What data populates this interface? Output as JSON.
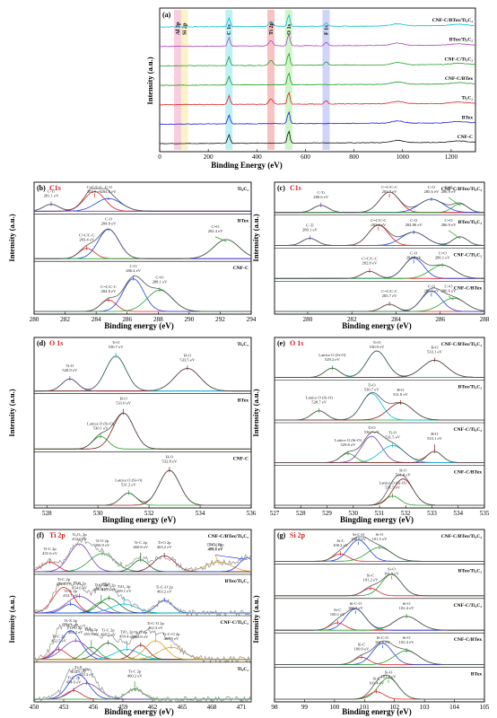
{
  "figure": {
    "axis": {
      "ylabel": "Intensity (a.u.)",
      "xlabel": "Binding energy (eV)",
      "xlabel_a": "Binding Energy (eV)",
      "xlabel_d": "Bingding energy (eV)"
    }
  },
  "chart_data": [
    {
      "panel": "(a)",
      "type": "line",
      "xlabel": "Binding Energy (eV)",
      "ylabel": "Intensity (a.u.)",
      "xlim": [
        0,
        1300
      ],
      "xticks": [
        0,
        200,
        400,
        600,
        800,
        1000,
        1200
      ],
      "bands": [
        {
          "label": "Al 2p",
          "x": 74,
          "color": "#f3a3c8"
        },
        {
          "label": "Si 2p",
          "x": 102,
          "color": "#f6e79a"
        },
        {
          "label": "C 1s",
          "x": 285,
          "color": "#88e6f0"
        },
        {
          "label": "Ti 2p",
          "x": 458,
          "color": "#f29090"
        },
        {
          "label": "O 1s",
          "x": 531,
          "color": "#a7ec9c"
        },
        {
          "label": "F 1s",
          "x": 685,
          "color": "#a9b0f2"
        }
      ],
      "series": [
        {
          "name": "CNF-C/BTex/Ti₃C₂",
          "color": "#00bcd4"
        },
        {
          "name": "BTex/Ti₃C₂",
          "color": "#b040c0"
        },
        {
          "name": "CNF-C/Ti₃C₂",
          "color": "#22a02a"
        },
        {
          "name": "CNF-C/BTex",
          "color": "#1a9a1a"
        },
        {
          "name": "Ti₃C₂",
          "color": "#e02020"
        },
        {
          "name": "BTex",
          "color": "#1a1ae0"
        },
        {
          "name": "CNF-C",
          "color": "#111111"
        }
      ]
    },
    {
      "panel": "(b)",
      "element": "C1s",
      "type": "line",
      "xlabel": "Binding energy (eV)",
      "ylabel": "Intensity (a.u.)",
      "xlim": [
        280,
        294
      ],
      "xticks": [
        280,
        282,
        284,
        286,
        288,
        290,
        292,
        294
      ],
      "subpanels": [
        {
          "sample": "Ti₃C₂",
          "peaks": [
            {
              "label": "C-Ti",
              "be": "281.1 eV",
              "x": 281.1,
              "color": "#7a3fb0"
            },
            {
              "label": "C=C/C-C",
              "be": "283.9 eV",
              "x": 283.9,
              "color": "#e02020"
            },
            {
              "label": "C-O",
              "be": "284.8 eV",
              "x": 284.8,
              "color": "#2040e0"
            }
          ]
        },
        {
          "sample": "BTex",
          "peaks": [
            {
              "label": "C=C/C-C",
              "be": "283.4 eV",
              "x": 283.4,
              "color": "#e02020"
            },
            {
              "label": "C-O",
              "be": "284.8 eV",
              "x": 284.8,
              "color": "#2040e0"
            },
            {
              "label": "C=O",
              "be": "292.4 eV",
              "x": 292.4,
              "color": "#22a02a"
            }
          ]
        },
        {
          "sample": "CNF-C",
          "peaks": [
            {
              "label": "C=C/C-C",
              "be": "284.8 eV",
              "x": 284.8,
              "color": "#e02020"
            },
            {
              "label": "C-O",
              "be": "286.4 eV",
              "x": 286.4,
              "color": "#2040e0"
            },
            {
              "label": "C=O",
              "be": "288.1 eV",
              "x": 288.1,
              "color": "#22a02a"
            }
          ]
        }
      ]
    },
    {
      "panel": "(c)",
      "element": "C1s",
      "type": "line",
      "xlabel": "Binding energy (eV)",
      "ylabel": "Intensity (a.u.)",
      "xlim": [
        278.5,
        288
      ],
      "xticks": [
        280,
        282,
        284,
        286,
        288
      ],
      "subpanels": [
        {
          "sample": "CNF-C/BTex/Ti₃C₂",
          "peaks": [
            {
              "label": "C-Ti",
              "be": "280.6 eV",
              "x": 280.6,
              "color": "#7a3fb0"
            },
            {
              "label": "C=C/C-C",
              "be": "283.7 eV",
              "x": 283.7,
              "color": "#e02020"
            },
            {
              "label": "C-O",
              "be": "285.6 eV",
              "x": 285.6,
              "color": "#2040e0"
            },
            {
              "label": "C=O",
              "be": "286.9 eV",
              "x": 286.9,
              "color": "#22a02a"
            }
          ]
        },
        {
          "sample": "BTex/Ti₃C₂",
          "peaks": [
            {
              "label": "C-Ti",
              "be": "280.1 eV",
              "x": 280.1,
              "color": "#7a3fb0"
            },
            {
              "label": "C=C/C-C",
              "be": "283.2 eV",
              "x": 283.2,
              "color": "#e02020"
            },
            {
              "label": "C-O",
              "be": "284.80 eV",
              "x": 284.8,
              "color": "#2040e0"
            },
            {
              "label": "C=O",
              "be": "286.9 eV",
              "x": 286.9,
              "color": "#22a02a"
            }
          ]
        },
        {
          "sample": "CNF-C/Ti₃C₂",
          "peaks": [
            {
              "label": "C=C/C-C",
              "be": "282.8 eV",
              "x": 282.8,
              "color": "#e02020"
            },
            {
              "label": "C-O",
              "be": "284.8 eV",
              "x": 284.8,
              "color": "#2040e0"
            },
            {
              "label": "C=O",
              "be": "286.1 eV",
              "x": 286.1,
              "color": "#22a02a"
            }
          ]
        },
        {
          "sample": "CNF-C/BTex",
          "peaks": [
            {
              "label": "C=C/C-C",
              "be": "283.7 eV",
              "x": 283.7,
              "color": "#e02020"
            },
            {
              "label": "C-O",
              "be": "285.6 eV",
              "x": 285.6,
              "color": "#2040e0"
            },
            {
              "label": "C=O",
              "be": "286.6 eV",
              "x": 286.6,
              "color": "#22a02a"
            }
          ]
        }
      ]
    },
    {
      "panel": "(d)",
      "element": "O 1s",
      "type": "line",
      "xlabel": "Bingding energy (eV)",
      "ylabel": "Intensity (a.u.)",
      "xlim": [
        527.5,
        536
      ],
      "xticks": [
        528,
        530,
        532,
        534,
        536
      ],
      "subpanels": [
        {
          "sample": "Ti₃C₂",
          "peaks": [
            {
              "label": "Ti-O",
              "be": "528.9 eV",
              "x": 528.9,
              "color": "#7a3fb0"
            },
            {
              "label": "Ti-O",
              "be": "530.7 eV",
              "x": 530.7,
              "color": "#00bcd4"
            },
            {
              "label": "H-O",
              "be": "533.5 eV",
              "x": 533.5,
              "color": "#8a1a1a"
            }
          ]
        },
        {
          "sample": "BTex",
          "peaks": [
            {
              "label": "Lattice O (Si-O)",
              "be": "530.1 eV",
              "x": 530.1,
              "color": "#22a02a"
            },
            {
              "label": "H-O",
              "be": "531.0 eV",
              "x": 531.0,
              "color": "#8a1a1a"
            }
          ]
        },
        {
          "sample": "CNF-C",
          "peaks": [
            {
              "label": "Lattice O (Si-O)",
              "be": "531.2 eV",
              "x": 531.2,
              "color": "#22a02a"
            },
            {
              "label": "H-O",
              "be": "532.8 eV",
              "x": 532.8,
              "color": "#8a1a1a"
            }
          ]
        }
      ]
    },
    {
      "panel": "(e)",
      "element": "O 1s",
      "type": "line",
      "xlabel": "Bingding energy (eV)",
      "ylabel": "Intensity (a.u.)",
      "xlim": [
        527,
        535
      ],
      "xticks": [
        527,
        528,
        529,
        530,
        531,
        532,
        533,
        534,
        535
      ],
      "subpanels": [
        {
          "sample": "CNF-C/BTex/Ti₃C₂",
          "peaks": [
            {
              "label": "Lattice O (Si-O)",
              "be": "529.2 eV",
              "x": 529.2,
              "color": "#22a02a"
            },
            {
              "label": "Ti-O",
              "be": "530.9 eV",
              "x": 530.9,
              "color": "#00bcd4"
            },
            {
              "label": "H-O",
              "be": "533.1 eV",
              "x": 533.1,
              "color": "#8a1a1a"
            }
          ]
        },
        {
          "sample": "BTex/Ti₃C₂",
          "peaks": [
            {
              "label": "Lattice O (Si-O)",
              "be": "528.7 eV",
              "x": 528.7,
              "color": "#22a02a"
            },
            {
              "label": "Ti-O",
              "be": "530.7 eV",
              "x": 530.7,
              "color": "#00bcd4"
            },
            {
              "label": "H-O",
              "be": "531.8 eV",
              "x": 531.8,
              "color": "#8a1a1a"
            }
          ]
        },
        {
          "sample": "CNF-C/Ti₃C₂",
          "peaks": [
            {
              "label": "Lattice O (Si-O)",
              "be": "529.8 eV",
              "x": 529.8,
              "color": "#22a02a"
            },
            {
              "label": "Ti-O",
              "be": "530.7 eV",
              "x": 530.7,
              "color": "#7a3fb0"
            },
            {
              "label": "Ti-O",
              "be": "531.5 eV",
              "x": 531.5,
              "color": "#00bcd4"
            },
            {
              "label": "H-O",
              "be": "533.1 eV",
              "x": 533.1,
              "color": "#8a1a1a"
            }
          ]
        },
        {
          "sample": "CNF-C/BTex",
          "peaks": [
            {
              "label": "Lattice O (Si-O)",
              "be": "531.5 eV",
              "x": 531.5,
              "color": "#22a02a"
            },
            {
              "label": "H-O",
              "be": "531.9 eV",
              "x": 531.9,
              "color": "#8a1a1a"
            }
          ]
        }
      ]
    },
    {
      "panel": "(f)",
      "element": "Ti 2p",
      "type": "line",
      "xlabel": "Binding energy (eV)",
      "ylabel": "Intensity (a.u.)",
      "xlim": [
        450,
        472
      ],
      "xticks": [
        450,
        453,
        456,
        459,
        462,
        465,
        468,
        471
      ],
      "subpanels": [
        {
          "sample": "CNF-C/BTex/Ti₃C₂",
          "peaks": [
            {
              "label": "Ti-C 2p",
              "be": "451.6 eV",
              "x": 451.6,
              "color": "#e02020"
            },
            {
              "label": "Ti₂O₃ 2p",
              "be": "454.6 eV",
              "x": 454.6,
              "color": "#7a3fb0"
            },
            {
              "label": "Ti-O 2p",
              "be": "456.9 eV",
              "x": 456.9,
              "color": "#22a02a"
            },
            {
              "label": "Ti-C 2p",
              "be": "460.8 eV",
              "x": 460.8,
              "color": "#1a6a1a"
            },
            {
              "label": "Ti-O 2p",
              "be": "463.2 eV",
              "x": 463.2,
              "color": "#8a1a1a"
            },
            {
              "label": "TiO₂ 2p",
              "be": "468.7 eV",
              "x": 468.7,
              "color": "#e0a020"
            },
            {
              "label": "Ti-C-O 2p",
              "be": "471.6 eV",
              "x": 471.6,
              "color": "#2040e0"
            }
          ]
        },
        {
          "sample": "BTex/Ti₃C₂",
          "peaks": [
            {
              "label": "Ti-X 2p",
              "be": "453.7 eV",
              "x": 453.7,
              "color": "#2040e0"
            },
            {
              "label": "Ti-C 2p",
              "be": "453.0 eV",
              "x": 453.0,
              "color": "#e02020"
            },
            {
              "label": "Ti-O 2p",
              "be": "454.6 eV",
              "x": 454.6,
              "color": "#7a3fb0"
            },
            {
              "label": "Ti-O 2p",
              "be": "456.8 eV",
              "x": 456.8,
              "color": "#22a02a"
            },
            {
              "label": "Ti-C 2p",
              "be": "457.6 eV",
              "x": 457.6,
              "color": "#1a6a1a"
            },
            {
              "label": "TiO₂ 2p",
              "be": "459.1 eV",
              "x": 459.1,
              "color": "#00bcd4"
            },
            {
              "label": "Ti-C-O 2p",
              "be": "463.2 eV",
              "x": 463.2,
              "color": "#2040e0"
            }
          ]
        },
        {
          "sample": "CNF-C/Ti₃C₂",
          "peaks": [
            {
              "label": "Ti-C 2p",
              "be": "452.5 eV",
              "x": 452.5,
              "color": "#e02020"
            },
            {
              "label": "Ti-X 2p",
              "be": "453.7 eV",
              "x": 453.7,
              "color": "#2040e0"
            },
            {
              "label": "Ti-O 2p",
              "be": "454.2 eV",
              "x": 454.2,
              "color": "#7a3fb0"
            },
            {
              "label": "Ti-O 2p",
              "be": "455.8 eV",
              "x": 455.8,
              "color": "#22a02a"
            },
            {
              "label": "Ti-C 2p",
              "be": "457.5 eV",
              "x": 457.5,
              "color": "#1a6a1a"
            },
            {
              "label": "TiO₂ 2p",
              "be": "459.4 eV",
              "x": 459.4,
              "color": "#00bcd4"
            },
            {
              "label": "Ti-O 2p",
              "be": "460.8 eV",
              "x": 460.8,
              "color": "#8a1a1a"
            },
            {
              "label": "Ti-C-O 2p",
              "be": "462.3 eV",
              "x": 462.3,
              "color": "#e0a020"
            },
            {
              "label": "Ti-C-O 2p",
              "be": "463.9 eV",
              "x": 463.9,
              "color": "#e0a020"
            }
          ]
        },
        {
          "sample": "Ti₃C₂",
          "peaks": [
            {
              "label": "Ti-C 2p",
              "be": "454.0 eV",
              "x": 454.0,
              "color": "#e02020"
            },
            {
              "label": "Ti-X",
              "be": "454.5 eV",
              "x": 454.5,
              "color": "#2040e0"
            },
            {
              "label": "Ti²⁺",
              "be": "455.3 eV",
              "x": 455.3,
              "color": "#7a3fb0"
            },
            {
              "label": "Ti-C 2p",
              "be": "460.2 eV",
              "x": 460.2,
              "color": "#22a02a"
            }
          ]
        }
      ]
    },
    {
      "panel": "(g)",
      "element": "Si 2p",
      "type": "line",
      "xlabel": "Binding energy (eV)",
      "ylabel": "Intensity (a.u.)",
      "xlim": [
        98,
        105
      ],
      "xticks": [
        98,
        99,
        100,
        101,
        102,
        103,
        104,
        105
      ],
      "subpanels": [
        {
          "sample": "CNF-C/BTex/Ti₃C₂",
          "peaks": [
            {
              "label": "Si-C",
              "be": "100.2 eV",
              "x": 100.2,
              "color": "#e02020"
            },
            {
              "label": "Si-C-O",
              "be": "100.8 eV",
              "x": 100.8,
              "color": "#2040e0"
            },
            {
              "label": "Si-O",
              "be": "101.5 eV",
              "x": 101.5,
              "color": "#22a02a"
            }
          ]
        },
        {
          "sample": "BTex/Ti₃C₂",
          "peaks": [
            {
              "label": "Si-C",
              "be": "101.2 eV",
              "x": 101.2,
              "color": "#e02020"
            },
            {
              "label": "Si-O",
              "be": "101.9 eV",
              "x": 101.9,
              "color": "#22a02a"
            }
          ]
        },
        {
          "sample": "CNF-C/Ti₃C₂",
          "peaks": [
            {
              "label": "Si-C",
              "be": "100.1 eV",
              "x": 100.1,
              "color": "#e02020"
            },
            {
              "label": "Si-C-O",
              "be": "100.7 eV",
              "x": 100.7,
              "color": "#2040e0"
            },
            {
              "label": "Si-O",
              "be": "102.4 eV",
              "x": 102.4,
              "color": "#22a02a"
            }
          ]
        },
        {
          "sample": "CNF-C/BTex",
          "peaks": [
            {
              "label": "Si-C",
              "be": "100.9 eV",
              "x": 100.9,
              "color": "#e02020"
            },
            {
              "label": "Si-C-O",
              "be": "101.6 eV",
              "x": 101.6,
              "color": "#2040e0"
            },
            {
              "label": "Si-O",
              "be": "102.4 eV",
              "x": 102.4,
              "color": "#22a02a"
            }
          ]
        },
        {
          "sample": "BTex",
          "peaks": [
            {
              "label": "Si-C",
              "be": "101.4 eV",
              "x": 101.4,
              "color": "#e02020"
            },
            {
              "label": "Si-O",
              "be": "101.8 eV",
              "x": 101.8,
              "color": "#22a02a"
            }
          ]
        }
      ]
    }
  ]
}
